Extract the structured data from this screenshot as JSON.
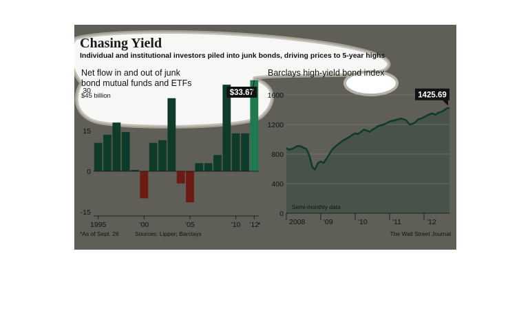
{
  "headline": {
    "title": "Chasing Yield",
    "subtitle": "Individual and institutional investors piled into junk bonds, driving prices to 5-year highs"
  },
  "footer": {
    "note": "*As of Sept. 26",
    "sources": "Sources: Lipper; Barclays",
    "credit": "The Wall Street Journal"
  },
  "colors": {
    "panel": "#5f5f57",
    "bar_positive": "#0f3b2a",
    "bar_latest": "#1f7a4e",
    "bar_negative": "#6b1a14",
    "line": "#0f3b2a",
    "area": "#47524a"
  },
  "chart_data": [
    {
      "type": "bar",
      "title": "Net flow in and out of junk bond mutual funds and ETFs",
      "unit_label": "$45 billion",
      "x": [
        1995,
        1996,
        1997,
        1998,
        1999,
        2000,
        2001,
        2002,
        2003,
        2004,
        2005,
        2006,
        2007,
        2008,
        2009,
        2010,
        2011,
        2012
      ],
      "values": [
        10.5,
        13.5,
        18,
        14.5,
        0.5,
        -10,
        10.5,
        11.5,
        27,
        -4.5,
        -11.5,
        3,
        3,
        6,
        32,
        14,
        14,
        33.67
      ],
      "ylim": [
        -15,
        45
      ],
      "yticks": [
        -15,
        0,
        15,
        30
      ],
      "xticks": [
        1995,
        2000,
        2005,
        2010,
        2012
      ],
      "xtick_labels": [
        "1995",
        "'00",
        "'05",
        "'10",
        "'12"
      ],
      "callout": "$33.67",
      "callout_note": "*"
    },
    {
      "type": "area",
      "title": "Barclays high-yield bond index",
      "annotation": "Semi-monthly data",
      "x": [
        2008.0,
        2008.08,
        2008.17,
        2008.25,
        2008.33,
        2008.42,
        2008.5,
        2008.58,
        2008.67,
        2008.75,
        2008.83,
        2008.92,
        2009.0,
        2009.08,
        2009.17,
        2009.25,
        2009.33,
        2009.42,
        2009.5,
        2009.58,
        2009.67,
        2009.75,
        2009.83,
        2009.92,
        2010.0,
        2010.08,
        2010.17,
        2010.25,
        2010.33,
        2010.42,
        2010.5,
        2010.58,
        2010.67,
        2010.75,
        2010.83,
        2010.92,
        2011.0,
        2011.08,
        2011.17,
        2011.25,
        2011.33,
        2011.42,
        2011.5,
        2011.58,
        2011.67,
        2011.75,
        2011.83,
        2011.92,
        2012.0,
        2012.08,
        2012.17,
        2012.25,
        2012.33,
        2012.42,
        2012.5,
        2012.58,
        2012.67,
        2012.74
      ],
      "values": [
        880,
        860,
        870,
        890,
        910,
        905,
        885,
        870,
        780,
        630,
        590,
        680,
        700,
        680,
        740,
        800,
        860,
        900,
        930,
        960,
        990,
        1010,
        1030,
        1060,
        1080,
        1070,
        1100,
        1130,
        1120,
        1100,
        1130,
        1150,
        1180,
        1190,
        1200,
        1220,
        1240,
        1250,
        1260,
        1270,
        1280,
        1270,
        1250,
        1200,
        1210,
        1230,
        1270,
        1280,
        1300,
        1320,
        1340,
        1350,
        1330,
        1360,
        1370,
        1390,
        1420,
        1425.69
      ],
      "ylim": [
        0,
        1600
      ],
      "yticks": [
        0,
        400,
        800,
        1200,
        1600
      ],
      "xlim": [
        2008.0,
        2012.74
      ],
      "xticks": [
        2009,
        2010,
        2011,
        2012
      ],
      "xtick_labels": [
        "2008",
        "'09",
        "'10",
        "'11",
        "'12"
      ],
      "callout": "1425.69"
    }
  ]
}
